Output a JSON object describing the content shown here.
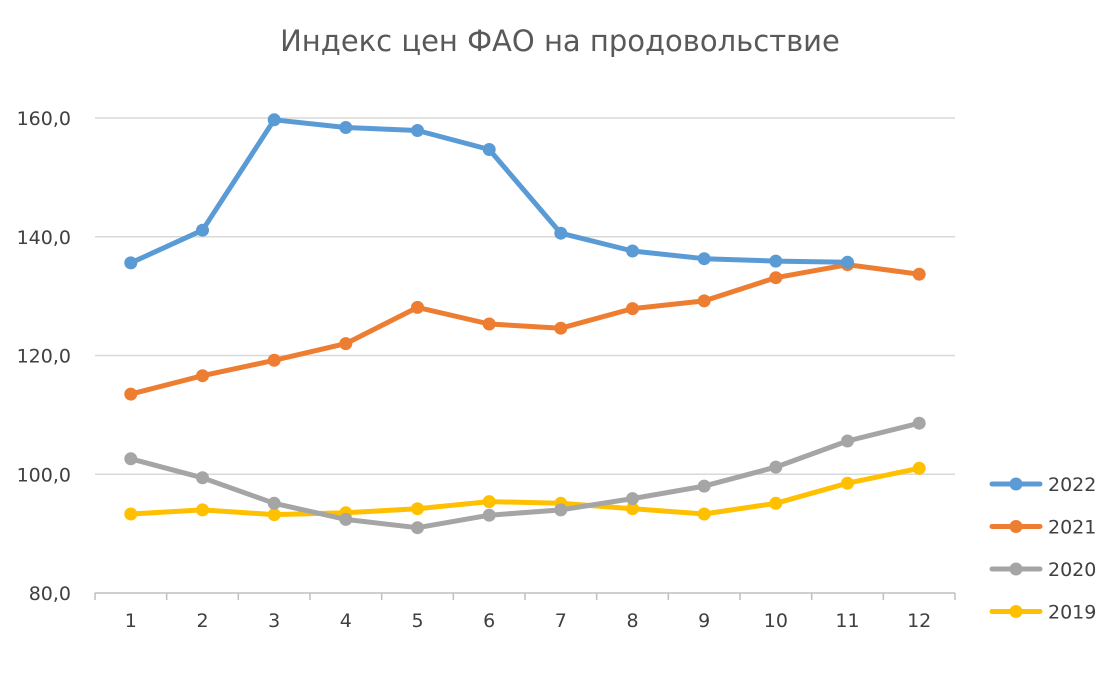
{
  "chart_data": {
    "type": "line",
    "title": "Индекс цен ФАО на продовольствие",
    "xlabel": "",
    "ylabel": "",
    "categories": [
      "1",
      "2",
      "3",
      "4",
      "5",
      "6",
      "7",
      "8",
      "9",
      "10",
      "11",
      "12"
    ],
    "y_ticks": [
      "80,0",
      "100,0",
      "120,0",
      "140,0",
      "160,0"
    ],
    "ylim": [
      80,
      160
    ],
    "grid": true,
    "legend_position": "right",
    "series": [
      {
        "name": "2022",
        "color": "#5B9BD5",
        "values": [
          135.6,
          141.1,
          159.7,
          158.4,
          157.9,
          154.7,
          140.6,
          137.6,
          136.3,
          135.9,
          135.7,
          null
        ]
      },
      {
        "name": "2021",
        "color": "#ED7D31",
        "values": [
          113.5,
          116.6,
          119.2,
          122.0,
          128.1,
          125.3,
          124.6,
          127.9,
          129.2,
          133.1,
          135.3,
          133.7
        ]
      },
      {
        "name": "2020",
        "color": "#A5A5A5",
        "values": [
          102.6,
          99.4,
          95.1,
          92.4,
          91.0,
          93.1,
          94.0,
          95.9,
          98.0,
          101.2,
          105.6,
          108.6
        ]
      },
      {
        "name": "2019",
        "color": "#FFC000",
        "values": [
          93.3,
          94.0,
          93.2,
          93.5,
          94.2,
          95.4,
          95.1,
          94.2,
          93.3,
          95.1,
          98.5,
          101.0
        ]
      }
    ]
  }
}
